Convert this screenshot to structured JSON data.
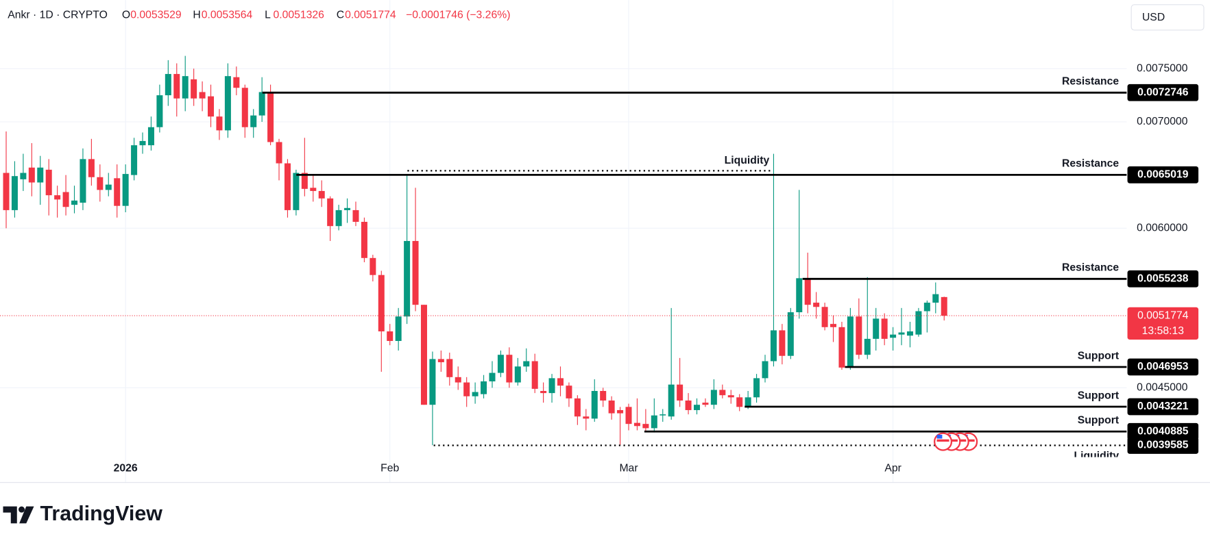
{
  "header": {
    "symbol": "Ankr · 1D · CRYPTO",
    "o": "O",
    "h": "H",
    "l": "L",
    "c": "C",
    "change": "−0.0001746 (−3.26%)",
    "currency": "USD",
    "countdown": "13:58:13",
    "brand": "TradingView"
  },
  "chart_data": {
    "type": "candlestick",
    "categories": [
      null,
      null,
      null,
      null,
      null,
      null,
      null,
      null,
      null,
      null,
      null,
      null,
      null,
      null,
      "2026",
      null,
      null,
      null,
      null,
      null,
      null,
      null,
      null,
      null,
      null,
      null,
      null,
      null,
      null,
      null,
      null,
      null,
      null,
      null,
      null,
      null,
      null,
      null,
      null,
      null,
      null,
      null,
      null,
      null,
      null,
      "Feb",
      null,
      null,
      null,
      null,
      null,
      null,
      null,
      null,
      null,
      null,
      null,
      null,
      null,
      null,
      null,
      null,
      null,
      null,
      null,
      null,
      null,
      null,
      null,
      null,
      null,
      null,
      null,
      "Mar",
      null,
      null,
      null,
      null,
      null,
      null,
      null,
      null,
      null,
      null,
      null,
      null,
      null,
      null,
      null,
      null,
      null,
      null,
      null,
      null,
      null,
      null,
      null,
      null,
      null,
      null,
      null,
      null,
      null,
      null,
      "Apr",
      null,
      null,
      null,
      null,
      null,
      null
    ],
    "open": [
      0.00652,
      0.00617,
      0.00646,
      0.00657,
      0.00643,
      0.00655,
      0.00631,
      0.00634,
      0.00622,
      0.00624,
      0.00665,
      0.00648,
      0.00636,
      0.00647,
      0.00621,
      0.0065,
      0.00678,
      0.00678,
      0.00695,
      0.00725,
      0.00745,
      0.00722,
      0.0074,
      0.00728,
      0.00724,
      0.00705,
      0.00692,
      0.00742,
      0.00732,
      0.00695,
      0.00706,
      0.00728,
      0.00681,
      0.00661,
      0.00617,
      0.00652,
      0.00638,
      0.00635,
      0.00628,
      0.00602,
      0.00617,
      0.00617,
      0.00606,
      0.00572,
      0.00556,
      0.00503,
      0.00494,
      0.00517,
      0.00588,
      0.00528,
      0.00434,
      0.00477,
      0.00477,
      0.0046,
      0.00455,
      0.00442,
      0.00444,
      0.00456,
      0.00464,
      0.00481,
      0.00455,
      0.0047,
      0.00475,
      0.00447,
      0.00445,
      0.00459,
      0.00452,
      0.0044,
      0.00423,
      0.00421,
      0.00447,
      0.00438,
      0.00429,
      0.00432,
      0.00417,
      0.00416,
      0.00412,
      0.00424,
      0.00423,
      0.00453,
      0.00438,
      0.00429,
      0.00436,
      0.00434,
      0.00448,
      0.00443,
      0.00441,
      0.00432,
      0.00441,
      0.00459,
      0.00475,
      0.00504,
      0.0048,
      0.00521,
      0.00553,
      0.0053,
      0.00526,
      0.0051,
      0.00507,
      0.00469,
      0.00517,
      0.00481,
      0.00496,
      0.00515,
      0.00497,
      0.005,
      0.00499,
      0.005,
      0.00522,
      0.0053,
      0.0053529
    ],
    "high": [
      0.00691,
      0.00663,
      0.0067,
      0.0068,
      0.00668,
      0.00665,
      0.0064,
      0.0065,
      0.0064,
      0.00675,
      0.00684,
      0.0066,
      0.00652,
      0.0066,
      0.0066,
      0.00685,
      0.0069,
      0.00705,
      0.00735,
      0.00758,
      0.00755,
      0.00762,
      0.0075,
      0.00738,
      0.00735,
      0.00712,
      0.00755,
      0.00752,
      0.00735,
      0.00712,
      0.00742,
      0.00735,
      0.00684,
      0.00665,
      0.00655,
      0.00685,
      0.0065,
      0.00645,
      0.0063,
      0.00622,
      0.00628,
      0.00625,
      0.0061,
      0.00575,
      0.0056,
      0.0051,
      0.00525,
      0.0065,
      0.00638,
      0.00528,
      0.00484,
      0.00485,
      0.00483,
      0.0047,
      0.0046,
      0.00455,
      0.00462,
      0.00475,
      0.00485,
      0.00488,
      0.00478,
      0.00487,
      0.00482,
      0.00455,
      0.00463,
      0.0047,
      0.00455,
      0.00443,
      0.0043,
      0.00458,
      0.0045,
      0.00442,
      0.00432,
      0.00435,
      0.0044,
      0.0043,
      0.0044,
      0.0043,
      0.00525,
      0.00478,
      0.00445,
      0.0044,
      0.0044,
      0.00458,
      0.00453,
      0.00448,
      0.00444,
      0.00447,
      0.00463,
      0.00481,
      0.0067,
      0.0051,
      0.00525,
      0.00636,
      0.00577,
      0.0054,
      0.0053,
      0.00518,
      0.00512,
      0.00525,
      0.00534,
      0.00554,
      0.00525,
      0.0052,
      0.00507,
      0.00525,
      0.00512,
      0.00525,
      0.00532,
      0.00549,
      0.0053564
    ],
    "low": [
      0.006,
      0.0061,
      0.00635,
      0.0063,
      0.00622,
      0.00612,
      0.0061,
      0.00612,
      0.00614,
      0.00617,
      0.0064,
      0.00625,
      0.0063,
      0.0061,
      0.00615,
      0.00645,
      0.0067,
      0.00673,
      0.0069,
      0.00715,
      0.00705,
      0.0071,
      0.00715,
      0.0071,
      0.00695,
      0.00683,
      0.00685,
      0.00725,
      0.00685,
      0.00685,
      0.007,
      0.00678,
      0.00645,
      0.0061,
      0.00612,
      0.0063,
      0.00625,
      0.0062,
      0.00588,
      0.00598,
      0.00605,
      0.00602,
      0.00568,
      0.0055,
      0.00465,
      0.0049,
      0.00485,
      0.0051,
      0.00522,
      0.00434,
      0.00396,
      0.00465,
      0.00452,
      0.00448,
      0.00432,
      0.00435,
      0.0044,
      0.0045,
      0.0046,
      0.0045,
      0.00452,
      0.00465,
      0.00445,
      0.00436,
      0.00436,
      0.00442,
      0.00432,
      0.00415,
      0.0041,
      0.00418,
      0.00432,
      0.0042,
      0.00396,
      0.0041,
      0.0041,
      0.00409,
      0.00408,
      0.00418,
      0.0042,
      0.00432,
      0.00425,
      0.00425,
      0.00432,
      0.0043,
      0.0044,
      0.00435,
      0.00428,
      0.0043,
      0.00436,
      0.00455,
      0.0047,
      0.00472,
      0.00477,
      0.00515,
      0.0052,
      0.00515,
      0.00504,
      0.00493,
      0.00467,
      0.00467,
      0.00477,
      0.00477,
      0.00485,
      0.0049,
      0.00485,
      0.0049,
      0.00488,
      0.00498,
      0.00502,
      0.0052,
      0.0051326
    ],
    "close": [
      0.00617,
      0.00649,
      0.00652,
      0.00643,
      0.00657,
      0.00631,
      0.00627,
      0.0062,
      0.00626,
      0.00665,
      0.00648,
      0.00636,
      0.00641,
      0.00621,
      0.00651,
      0.00678,
      0.00682,
      0.00695,
      0.00725,
      0.00745,
      0.00722,
      0.00743,
      0.00722,
      0.00722,
      0.00705,
      0.00692,
      0.00743,
      0.00732,
      0.00695,
      0.00706,
      0.00728,
      0.00681,
      0.00661,
      0.00617,
      0.00652,
      0.00637,
      0.00635,
      0.00628,
      0.00602,
      0.00617,
      0.00619,
      0.00606,
      0.00572,
      0.00556,
      0.00503,
      0.00494,
      0.00517,
      0.00588,
      0.00528,
      0.00434,
      0.00477,
      0.00474,
      0.0046,
      0.00455,
      0.00442,
      0.00446,
      0.00456,
      0.00464,
      0.00481,
      0.00455,
      0.0047,
      0.00475,
      0.00449,
      0.00445,
      0.00459,
      0.00452,
      0.0044,
      0.00423,
      0.00421,
      0.00447,
      0.00438,
      0.00426,
      0.00426,
      0.00416,
      0.00414,
      0.00412,
      0.00424,
      0.00425,
      0.00453,
      0.00438,
      0.00429,
      0.00434,
      0.00434,
      0.00448,
      0.00443,
      0.00441,
      0.00432,
      0.00441,
      0.00459,
      0.00475,
      0.00504,
      0.0048,
      0.00521,
      0.00553,
      0.00528,
      0.00526,
      0.00507,
      0.00507,
      0.00469,
      0.00517,
      0.00481,
      0.00496,
      0.00515,
      0.00496,
      0.005,
      0.00502,
      0.00503,
      0.00522,
      0.0053,
      0.00538,
      0.0051774
    ],
    "up_color": "#089981",
    "down_color": "#f23645",
    "ylim": [
      0.00387,
      0.008145
    ],
    "yticks": [
      {
        "value": 0.0075,
        "label": "0.0075000"
      },
      {
        "value": 0.007,
        "label": "0.0070000"
      },
      {
        "value": 0.006,
        "label": "0.0060000"
      },
      {
        "value": 0.0045,
        "label": "0.0045000"
      }
    ],
    "grid": true,
    "levels": [
      {
        "label": "Resistance",
        "value": 0.0072746
      },
      {
        "label": "Resistance",
        "value": 0.0065019
      },
      {
        "label": "Resistance",
        "value": 0.0055238
      },
      {
        "label": "Support",
        "value": 0.0046953
      },
      {
        "label": "Support",
        "value": 0.0043221
      },
      {
        "label": "Support",
        "value": 0.0040885
      }
    ],
    "liquidity": [
      {
        "label": "Liquidity",
        "value": 0.00654
      },
      {
        "label": "Liquidity",
        "value": 0.0039585
      }
    ]
  }
}
